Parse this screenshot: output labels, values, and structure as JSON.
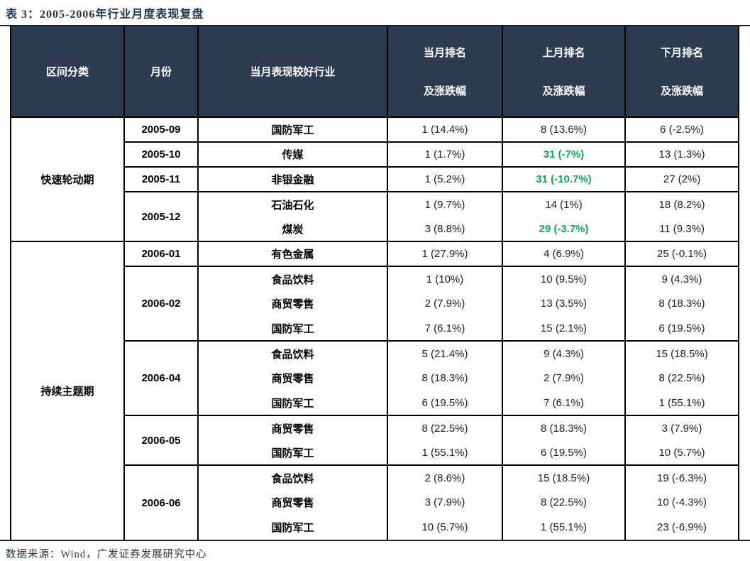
{
  "title": "表 3：2005-2006年行业月度表现复盘",
  "source_note": "数据来源：Wind，广发证券发展研究中心",
  "colors": {
    "header_bg": "#2E3C52",
    "header_text": "#FFFFFF",
    "highlight_green": "#0FA854",
    "title_navy": "#1F3449",
    "border_black": "#000000"
  },
  "table": {
    "headers": [
      {
        "line1": "区间分类",
        "line2": ""
      },
      {
        "line1": "月份",
        "line2": ""
      },
      {
        "line1": "当月表现较好行业",
        "line2": ""
      },
      {
        "line1": "当月排名",
        "line2": "及涨跌幅"
      },
      {
        "line1": "上月排名",
        "line2": "及涨跌幅"
      },
      {
        "line1": "下月排名",
        "line2": "及涨跌幅"
      }
    ],
    "sections": [
      {
        "label": "快速轮动期",
        "months": [
          {
            "month": "2005-09",
            "rows": [
              {
                "industry": "国防军工",
                "current": "1 (14.4%)",
                "prev": "8 (13.6%)",
                "next": "6 (-2.5%)"
              }
            ]
          },
          {
            "month": "2005-10",
            "rows": [
              {
                "industry": "传媒",
                "current": "1 (1.7%)",
                "prev": "31 (-7%)",
                "prev_green": true,
                "next": "13 (1.3%)"
              }
            ]
          },
          {
            "month": "2005-11",
            "rows": [
              {
                "industry": "非银金融",
                "current": "1 (5.2%)",
                "prev": "31 (-10.7%)",
                "prev_green": true,
                "next": "27 (2%)"
              }
            ]
          },
          {
            "month": "2005-12",
            "rows": [
              {
                "industry": "石油石化",
                "current": "1 (9.7%)",
                "prev": "14 (1%)",
                "next": "18 (8.2%)"
              },
              {
                "industry": "煤炭",
                "current": "3 (8.8%)",
                "prev": "29 (-3.7%)",
                "prev_green": true,
                "next": "11 (9.3%)"
              }
            ]
          }
        ]
      },
      {
        "label": "持续主题期",
        "months": [
          {
            "month": "2006-01",
            "rows": [
              {
                "industry": "有色金属",
                "current": "1 (27.9%)",
                "prev": "4 (6.9%)",
                "next": "25 (-0.1%)"
              }
            ]
          },
          {
            "month": "2006-02",
            "rows": [
              {
                "industry": "食品饮料",
                "current": "1 (10%)",
                "prev": "10 (9.5%)",
                "next": "9 (4.3%)"
              },
              {
                "industry": "商贸零售",
                "current": "2 (7.9%)",
                "prev": "13 (3.5%)",
                "next": "8 (18.3%)"
              },
              {
                "industry": "国防军工",
                "current": "7 (6.1%)",
                "prev": "15 (2.1%)",
                "next": "6 (19.5%)"
              }
            ]
          },
          {
            "month": "2006-04",
            "rows": [
              {
                "industry": "食品饮料",
                "current": "5 (21.4%)",
                "prev": "9 (4.3%)",
                "next": "15 (18.5%)"
              },
              {
                "industry": "商贸零售",
                "current": "8 (18.3%)",
                "prev": "2 (7.9%)",
                "next": "8 (22.5%)"
              },
              {
                "industry": "国防军工",
                "current": "6 (19.5%)",
                "prev": "7 (6.1%)",
                "next": "1 (55.1%)"
              }
            ]
          },
          {
            "month": "2006-05",
            "rows": [
              {
                "industry": "商贸零售",
                "current": "8 (22.5%)",
                "prev": "8 (18.3%)",
                "next": "3 (7.9%)"
              },
              {
                "industry": "国防军工",
                "current": "1 (55.1%)",
                "prev": "6 (19.5%)",
                "next": "10 (5.7%)"
              }
            ]
          },
          {
            "month": "2006-06",
            "rows": [
              {
                "industry": "食品饮料",
                "current": "2 (8.6%)",
                "prev": "15 (18.5%)",
                "next": "19 (-6.3%)"
              },
              {
                "industry": "商贸零售",
                "current": "3 (7.9%)",
                "prev": "8 (22.5%)",
                "next": "10 (-4.3%)"
              },
              {
                "industry": "国防军工",
                "current": "10 (5.7%)",
                "prev": "1 (55.1%)",
                "next": "23 (-6.9%)"
              }
            ]
          }
        ]
      }
    ]
  }
}
